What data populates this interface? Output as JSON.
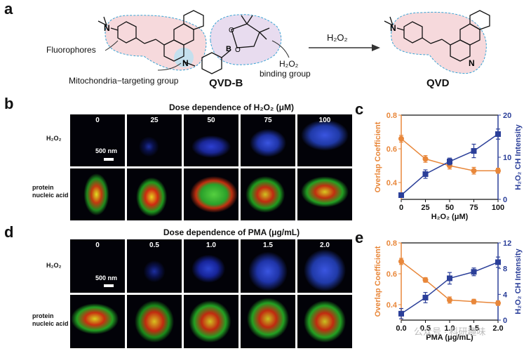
{
  "panels": {
    "a": "a",
    "b": "b",
    "c": "c",
    "d": "d",
    "e": "e"
  },
  "scheme": {
    "fluorophores": "Fluorophores",
    "mito_group": "Mitochondria−targeting group",
    "h2o2_binding_1": "H₂O₂",
    "h2o2_binding_2": "binding group",
    "probe_name": "QVD-B",
    "arrow_reagent": "H₂O₂",
    "product_name": "QVD",
    "atom_N": "N",
    "atom_B": "B",
    "atom_O": "O",
    "colors": {
      "fluor_region": "#f6d9dc",
      "binding_region": "#e8dcef",
      "mito_region": "#bfe0f0",
      "dash": "#3aa4d4"
    }
  },
  "panel_b": {
    "title": "Dose dependence of H₂O₂ (μM)",
    "doses": [
      "0",
      "25",
      "50",
      "75",
      "100"
    ],
    "row1_label": "H₂O₂",
    "row2_label_1": "protein",
    "row2_label_2": "nucleic acid",
    "scale": "500 nm"
  },
  "panel_d": {
    "title": "Dose dependence of PMA (μg/mL)",
    "doses": [
      "0",
      "0.5",
      "1.0",
      "1.5",
      "2.0"
    ],
    "row1_label": "H₂O₂",
    "row2_label_1": "protein",
    "row2_label_2": "nucleic acid",
    "scale": "500 nm"
  },
  "watermark": "公众号 · 科研趣味",
  "chart_data": [
    {
      "panel": "c",
      "type": "line",
      "xlabel": "H₂O₂ (μM)",
      "ylabel_left": "Overlap Coefficient",
      "ylabel_right": "H₂O₂ CH Intensity",
      "x": [
        0,
        25,
        50,
        75,
        100
      ],
      "xticks": [
        "0",
        "25",
        "50",
        "75",
        "100"
      ],
      "xlim": [
        0,
        100
      ],
      "ylim_left": [
        0.3,
        0.8
      ],
      "yticks_left": [
        "0.4",
        "0.6",
        "0.8"
      ],
      "ylim_right": [
        0,
        20
      ],
      "yticks_right": [
        "0",
        "10",
        "20"
      ],
      "series": [
        {
          "axis": "left",
          "color": "#e8873a",
          "marker": "circle",
          "values": [
            0.66,
            0.54,
            0.5,
            0.47,
            0.47
          ],
          "errors": [
            0.02,
            0.02,
            0.02,
            0.02,
            0.015
          ]
        },
        {
          "axis": "right",
          "color": "#2b3f99",
          "marker": "square",
          "values": [
            1,
            6,
            9,
            11.5,
            15.5
          ],
          "errors": [
            0.5,
            1.0,
            0.8,
            1.6,
            1.2
          ]
        }
      ]
    },
    {
      "panel": "e",
      "type": "line",
      "xlabel": "PMA (μg/mL)",
      "ylabel_left": "Overlap Coefficient",
      "ylabel_right": "H₂O₂ CH Intensity",
      "x": [
        0,
        0.5,
        1.0,
        1.5,
        2.0
      ],
      "xticks": [
        "0.0",
        "0.5",
        "1.0",
        "1.5",
        "2.0"
      ],
      "xlim": [
        0,
        2.0
      ],
      "ylim_left": [
        0.3,
        0.8
      ],
      "yticks_left": [
        "0.4",
        "0.6",
        "0.8"
      ],
      "ylim_right": [
        0,
        12
      ],
      "yticks_right": [
        "0",
        "4",
        "8",
        "12"
      ],
      "series": [
        {
          "axis": "left",
          "color": "#e8873a",
          "marker": "circle",
          "values": [
            0.68,
            0.56,
            0.43,
            0.42,
            0.41
          ],
          "errors": [
            0.02,
            0.015,
            0.02,
            0.015,
            0.015
          ]
        },
        {
          "axis": "right",
          "color": "#2b3f99",
          "marker": "square",
          "values": [
            1,
            3.5,
            6.5,
            7.5,
            9
          ],
          "errors": [
            0.8,
            0.8,
            0.9,
            0.6,
            0.8
          ]
        }
      ]
    }
  ]
}
